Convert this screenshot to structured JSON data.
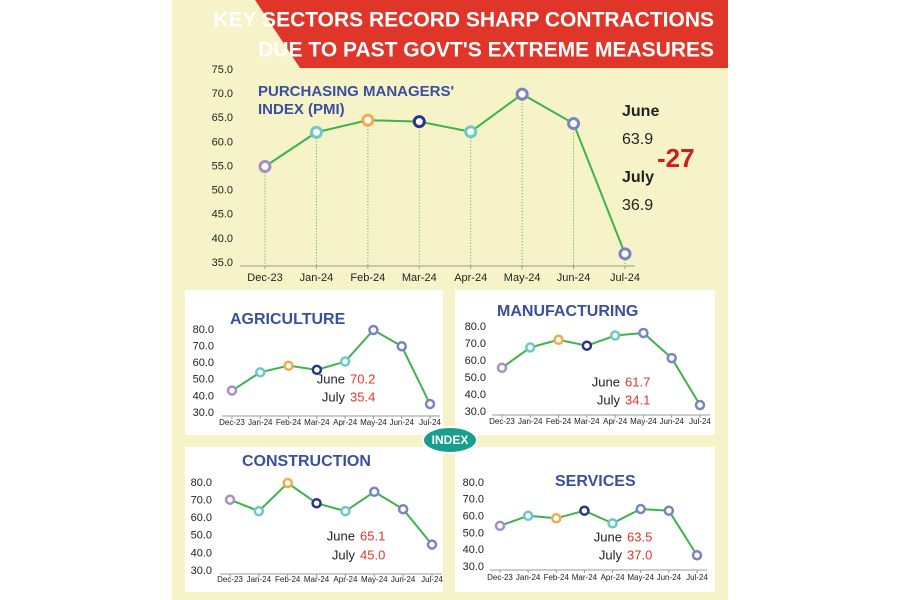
{
  "header": {
    "title_lines": [
      "KEY SECTORS RECORD SHARP CONTRACTIONS",
      "DUE TO PAST GOVT'S EXTREME MEASURES"
    ]
  },
  "badge": "INDEX",
  "chart_data": [
    {
      "type": "line",
      "title": [
        "PURCHASING MANAGERS'",
        "INDEX (PMI)"
      ],
      "categories": [
        "Dec-23",
        "Jan-24",
        "Feb-24",
        "Mar-24",
        "Apr-24",
        "May-24",
        "Jun-24",
        "Jul-24"
      ],
      "series": [
        {
          "name": "PMI",
          "color": "#3cb44b",
          "values": [
            55.0,
            62.1,
            64.6,
            64.3,
            62.2,
            70.0,
            63.9,
            36.9
          ],
          "marker_colors": [
            "#a58fc4",
            "#6cc9c9",
            "#f5a94a",
            "#2a3585",
            "#6cc9c9",
            "#7b84c2",
            "#7b84c2",
            "#7b84c2"
          ]
        }
      ],
      "ylim": [
        35,
        75
      ],
      "yticks": [
        {
          "value": 35,
          "label": "35.0"
        },
        {
          "value": 40,
          "label": "40.0"
        },
        {
          "value": 45,
          "label": "45.0"
        },
        {
          "value": 50,
          "label": "50.0"
        },
        {
          "value": 55,
          "label": "55.0"
        },
        {
          "value": 60,
          "label": "60.0"
        },
        {
          "value": 65,
          "label": "65.0"
        },
        {
          "value": 70,
          "label": "70.0"
        },
        {
          "value": 75,
          "label": "75.0"
        }
      ],
      "drop_lines": true,
      "annotations": [
        {
          "label": "June",
          "value": "63.9"
        },
        {
          "label": "July",
          "value": "36.9"
        }
      ],
      "change_label": "-27"
    },
    {
      "type": "line",
      "title": [
        "AGRICULTURE"
      ],
      "categories": [
        "Dec-23",
        "Jan-24",
        "Feb-24",
        "Mar-24",
        "Apr-24",
        "May-24",
        "Jun-24",
        "Jul-24"
      ],
      "series": [
        {
          "name": "Agriculture",
          "color": "#3cb44b",
          "values": [
            43.5,
            54.5,
            58.5,
            56.0,
            61.0,
            80.0,
            70.2,
            35.4
          ],
          "marker_colors": [
            "#a58fc4",
            "#6cc9c9",
            "#f5a94a",
            "#2a3585",
            "#6cc9c9",
            "#7b84c2",
            "#7b84c2",
            "#7b84c2"
          ]
        }
      ],
      "ylim": [
        30,
        80
      ],
      "yticks": [
        {
          "value": 30,
          "label": "30.0"
        },
        {
          "value": 40,
          "label": "40.0"
        },
        {
          "value": 50,
          "label": "50.0"
        },
        {
          "value": 60,
          "label": "60.0"
        },
        {
          "value": 70,
          "label": "70.0"
        },
        {
          "value": 80,
          "label": "80.0"
        }
      ],
      "drop_lines": false,
      "annotations": [
        {
          "label": "June",
          "value": "70.2"
        },
        {
          "label": "July",
          "value": "35.4"
        }
      ]
    },
    {
      "type": "line",
      "title": [
        "MANUFACTURING"
      ],
      "categories": [
        "Dec-23",
        "Jan-24",
        "Feb-24",
        "Mar-24",
        "Apr-24",
        "May-24",
        "Jun-24",
        "Jul-24"
      ],
      "series": [
        {
          "name": "Manufacturing",
          "color": "#3cb44b",
          "values": [
            56.0,
            68.0,
            72.5,
            69.0,
            75.0,
            76.5,
            61.7,
            34.1
          ],
          "marker_colors": [
            "#a58fc4",
            "#6cc9c9",
            "#f5a94a",
            "#2a3585",
            "#6cc9c9",
            "#7b84c2",
            "#7b84c2",
            "#7b84c2"
          ]
        }
      ],
      "ylim": [
        30,
        80
      ],
      "yticks": [
        {
          "value": 30,
          "label": "30.0"
        },
        {
          "value": 40,
          "label": "40.0"
        },
        {
          "value": 50,
          "label": "50.0"
        },
        {
          "value": 60,
          "label": "60.0"
        },
        {
          "value": 70,
          "label": "70.0"
        },
        {
          "value": 80,
          "label": "80.0"
        }
      ],
      "drop_lines": false,
      "annotations": [
        {
          "label": "June",
          "value": "61.7"
        },
        {
          "label": "July",
          "value": "34.1"
        }
      ]
    },
    {
      "type": "line",
      "title": [
        "CONSTRUCTION"
      ],
      "categories": [
        "Dec-23",
        "Jan-24",
        "Feb-24",
        "Mar-24",
        "Apr-24",
        "May-24",
        "Jun-24",
        "Jul-24"
      ],
      "series": [
        {
          "name": "Construction",
          "color": "#3cb44b",
          "values": [
            70.5,
            64.0,
            80.0,
            68.5,
            64.0,
            75.0,
            65.1,
            45.0
          ],
          "marker_colors": [
            "#a58fc4",
            "#6cc9c9",
            "#f5a94a",
            "#2a3585",
            "#6cc9c9",
            "#7b84c2",
            "#7b84c2",
            "#7b84c2"
          ]
        }
      ],
      "ylim": [
        30,
        80
      ],
      "yticks": [
        {
          "value": 30,
          "label": "30.0"
        },
        {
          "value": 40,
          "label": "40.0"
        },
        {
          "value": 50,
          "label": "50.0"
        },
        {
          "value": 60,
          "label": "60.0"
        },
        {
          "value": 70,
          "label": "70.0"
        },
        {
          "value": 80,
          "label": "80.0"
        }
      ],
      "drop_lines": false,
      "annotations": [
        {
          "label": "June",
          "value": "65.1"
        },
        {
          "label": "July",
          "value": "45.0"
        }
      ]
    },
    {
      "type": "line",
      "title": [
        "SERVICES"
      ],
      "categories": [
        "Dec-23",
        "Jan-24",
        "Feb-24",
        "Mar-24",
        "Apr-24",
        "May-24",
        "Jun-24",
        "Jul-24"
      ],
      "series": [
        {
          "name": "Services",
          "color": "#3cb44b",
          "values": [
            54.5,
            60.5,
            59.0,
            63.5,
            56.0,
            64.5,
            63.5,
            37.0
          ],
          "marker_colors": [
            "#a58fc4",
            "#6cc9c9",
            "#f5a94a",
            "#2a3585",
            "#6cc9c9",
            "#7b84c2",
            "#7b84c2",
            "#7b84c2"
          ]
        }
      ],
      "ylim": [
        30,
        80
      ],
      "yticks": [
        {
          "value": 30,
          "label": "30.0"
        },
        {
          "value": 40,
          "label": "40.0"
        },
        {
          "value": 50,
          "label": "50.0"
        },
        {
          "value": 60,
          "label": "60.0"
        },
        {
          "value": 70,
          "label": "70.0"
        },
        {
          "value": 80,
          "label": "80.0"
        }
      ],
      "drop_lines": false,
      "annotations": [
        {
          "label": "June",
          "value": "63.5"
        },
        {
          "label": "July",
          "value": "37.0"
        }
      ]
    }
  ]
}
